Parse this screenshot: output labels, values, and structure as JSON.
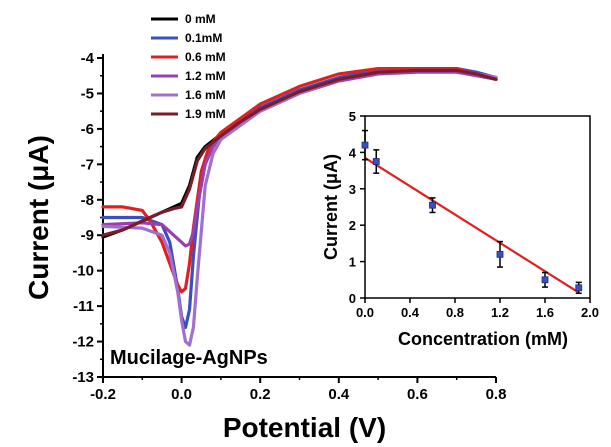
{
  "chart_data": [
    {
      "type": "line",
      "xlabel": "Potential (V)",
      "ylabel": "Current (μA)",
      "xlim": [
        -0.2,
        0.8
      ],
      "ylim": [
        -13,
        -4
      ],
      "xticks": [
        -0.2,
        0.0,
        0.2,
        0.4,
        0.6,
        0.8
      ],
      "yticks": [
        -13,
        -12,
        -11,
        -10,
        -9,
        -8,
        -7,
        -6,
        -5,
        -4
      ],
      "xtick_labels": [
        "-0.2",
        "0.0",
        "0.2",
        "0.4",
        "0.6",
        "0.8"
      ],
      "ytick_labels": [
        "-13",
        "-12",
        "-11",
        "-10",
        "-9",
        "-8",
        "-7",
        "-6",
        "-5",
        "-4"
      ],
      "annotation": "Mucilage-AgNPs",
      "legend_position": "top-left",
      "series": [
        {
          "name": "0 mM",
          "color": "#000000",
          "x": [
            -0.2,
            -0.15,
            -0.1,
            -0.05,
            -0.02,
            0.0,
            0.02,
            0.04,
            0.06,
            0.1,
            0.15,
            0.2,
            0.3,
            0.4,
            0.5,
            0.6,
            0.7,
            0.75,
            0.8
          ],
          "y": [
            -9.05,
            -8.85,
            -8.6,
            -8.35,
            -8.2,
            -8.1,
            -7.6,
            -6.8,
            -6.5,
            -6.15,
            -5.8,
            -5.45,
            -4.95,
            -4.6,
            -4.4,
            -4.35,
            -4.35,
            -4.45,
            -4.6
          ]
        },
        {
          "name": "0.1mM",
          "color": "#3a4fc0",
          "x": [
            -0.2,
            -0.1,
            -0.05,
            -0.03,
            -0.01,
            0.0,
            0.01,
            0.02,
            0.03,
            0.05,
            0.07,
            0.1,
            0.15,
            0.2,
            0.3,
            0.4,
            0.5,
            0.6,
            0.7,
            0.75,
            0.8
          ],
          "y": [
            -8.5,
            -8.5,
            -8.7,
            -9.2,
            -10.5,
            -11.3,
            -11.6,
            -11.1,
            -9.6,
            -7.3,
            -6.6,
            -6.2,
            -5.8,
            -5.4,
            -4.9,
            -4.55,
            -4.35,
            -4.3,
            -4.3,
            -4.4,
            -4.55
          ]
        },
        {
          "name": "0.6 mM",
          "color": "#e02020",
          "x": [
            -0.2,
            -0.15,
            -0.1,
            -0.08,
            -0.05,
            -0.03,
            -0.01,
            0.0,
            0.01,
            0.02,
            0.03,
            0.05,
            0.07,
            0.1,
            0.15,
            0.2,
            0.3,
            0.4,
            0.5,
            0.6,
            0.7,
            0.75,
            0.8
          ],
          "y": [
            -8.2,
            -8.2,
            -8.3,
            -8.6,
            -9.2,
            -9.8,
            -10.4,
            -10.6,
            -10.5,
            -9.8,
            -8.8,
            -7.2,
            -6.5,
            -6.1,
            -5.7,
            -5.3,
            -4.8,
            -4.45,
            -4.3,
            -4.3,
            -4.3,
            -4.45,
            -4.55
          ]
        },
        {
          "name": "1.2 mM",
          "color": "#9a3fae",
          "x": [
            -0.2,
            -0.1,
            -0.05,
            -0.02,
            0.0,
            0.01,
            0.02,
            0.03,
            0.04,
            0.06,
            0.08,
            0.1,
            0.15,
            0.2,
            0.3,
            0.4,
            0.5,
            0.6,
            0.7,
            0.75,
            0.8
          ],
          "y": [
            -8.7,
            -8.65,
            -8.7,
            -9.0,
            -9.2,
            -9.3,
            -9.25,
            -8.9,
            -8.2,
            -7.0,
            -6.5,
            -6.25,
            -5.85,
            -5.5,
            -5.0,
            -4.65,
            -4.45,
            -4.4,
            -4.4,
            -4.5,
            -4.6
          ]
        },
        {
          "name": "1.6 mM",
          "color": "#a06fd0",
          "x": [
            -0.2,
            -0.1,
            -0.05,
            -0.03,
            -0.01,
            0.0,
            0.01,
            0.02,
            0.03,
            0.04,
            0.06,
            0.08,
            0.1,
            0.15,
            0.2,
            0.3,
            0.4,
            0.5,
            0.6,
            0.7,
            0.75,
            0.8
          ],
          "y": [
            -8.75,
            -8.8,
            -9.0,
            -9.5,
            -10.6,
            -11.4,
            -12.0,
            -12.1,
            -11.6,
            -10.2,
            -7.6,
            -6.7,
            -6.3,
            -5.9,
            -5.5,
            -5.0,
            -4.6,
            -4.4,
            -4.35,
            -4.35,
            -4.45,
            -4.55
          ]
        },
        {
          "name": "1.9 mM",
          "color": "#7b1c2a",
          "x": [
            -0.2,
            -0.15,
            -0.1,
            -0.05,
            -0.02,
            0.0,
            0.02,
            0.04,
            0.06,
            0.1,
            0.15,
            0.2,
            0.3,
            0.4,
            0.5,
            0.6,
            0.7,
            0.75,
            0.8
          ],
          "y": [
            -9.0,
            -8.85,
            -8.6,
            -8.35,
            -8.25,
            -8.2,
            -7.7,
            -6.9,
            -6.55,
            -6.2,
            -5.8,
            -5.45,
            -4.95,
            -4.6,
            -4.4,
            -4.35,
            -4.35,
            -4.45,
            -4.6
          ]
        }
      ]
    },
    {
      "type": "scatter",
      "xlabel": "Concentration (mM)",
      "ylabel": "Current (μA)",
      "xlim": [
        0,
        2.0
      ],
      "ylim": [
        0,
        5
      ],
      "xticks": [
        0.0,
        0.4,
        0.8,
        1.2,
        1.6,
        2.0
      ],
      "yticks": [
        0,
        1,
        2,
        3,
        4,
        5
      ],
      "xtick_labels": [
        "0.0",
        "0.4",
        "0.8",
        "1.2",
        "1.6",
        "2.0"
      ],
      "ytick_labels": [
        "0",
        "1",
        "2",
        "3",
        "4",
        "5"
      ],
      "points": {
        "x": [
          0.0,
          0.1,
          0.6,
          1.2,
          1.6,
          1.9
        ],
        "y": [
          4.2,
          3.75,
          2.55,
          1.2,
          0.5,
          0.28
        ],
        "error": [
          0.4,
          0.32,
          0.2,
          0.35,
          0.2,
          0.15
        ],
        "color": "#3a4fc0"
      },
      "fit_line": {
        "x": [
          0.0,
          1.9
        ],
        "y": [
          3.85,
          0.15
        ],
        "color": "#e02020"
      }
    }
  ]
}
